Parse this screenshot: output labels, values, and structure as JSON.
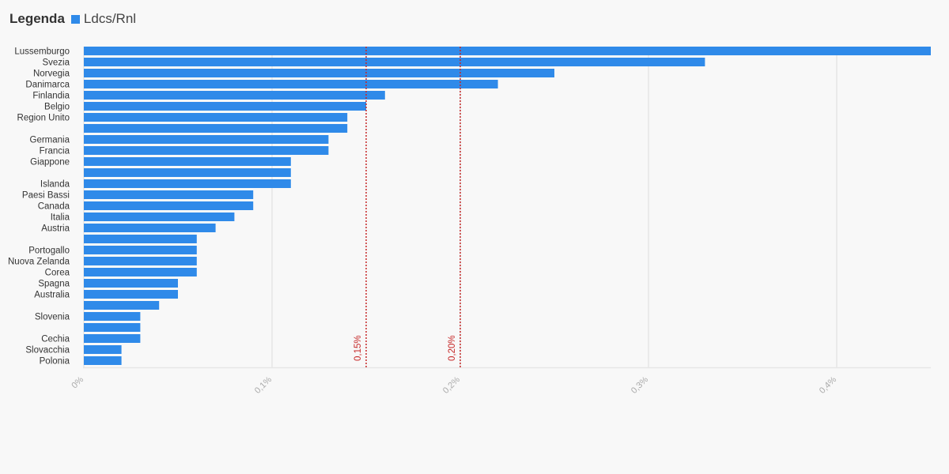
{
  "legend": {
    "title": "Legenda",
    "series_label": "Ldcs/Rnl"
  },
  "colors": {
    "bar": "#2f8ae9",
    "reference": "#c62828",
    "grid": "#e6e6e6",
    "axis_text": "#aaaaaa",
    "category_text": "#333333"
  },
  "chart_data": {
    "type": "bar",
    "orientation": "horizontal",
    "categories": [
      "Lussemburgo",
      "Svezia",
      "Norvegia",
      "Danimarca",
      "Finlandia",
      "Belgio",
      "Region Unito",
      "",
      "Germania",
      "Francia",
      "Giappone",
      "",
      "Islanda",
      "Paesi Bassi",
      "Canada",
      "Italia",
      "Austria",
      "",
      "Portogallo",
      "Nuova Zelanda",
      "Corea",
      "Spagna",
      "Australia",
      "",
      "Slovenia",
      "",
      "Cechia",
      "Slovacchia",
      "Polonia"
    ],
    "series": [
      {
        "name": "Ldcs/Rnl",
        "values": [
          0.45,
          0.33,
          0.25,
          0.22,
          0.16,
          0.15,
          0.14,
          0.14,
          0.13,
          0.13,
          0.11,
          0.11,
          0.11,
          0.09,
          0.09,
          0.08,
          0.07,
          0.06,
          0.06,
          0.06,
          0.06,
          0.05,
          0.05,
          0.04,
          0.03,
          0.03,
          0.03,
          0.02,
          0.02
        ]
      }
    ],
    "xlim": [
      0,
      0.45
    ],
    "x_ticks": [
      0,
      0.1,
      0.2,
      0.3,
      0.4
    ],
    "x_tick_labels": [
      "0%",
      "0,1%",
      "0,2%",
      "0,3%",
      "0,4%"
    ],
    "reference_lines": [
      {
        "value": 0.15,
        "label": "0,15%"
      },
      {
        "value": 0.2,
        "label": "0,20%"
      }
    ],
    "grid": true,
    "legend_position": "top-left"
  }
}
